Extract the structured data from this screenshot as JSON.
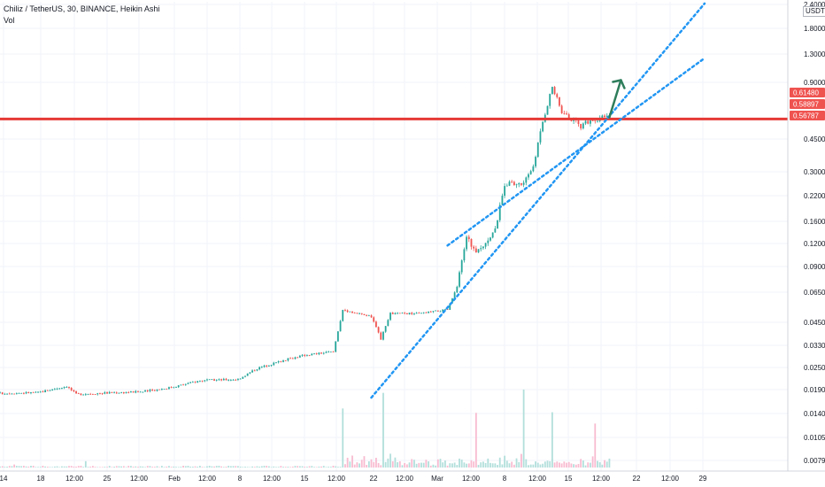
{
  "legend": {
    "symbol": "Chiliz / TetherUS, 30, BINANCE, Heikin Ashi",
    "volume_label": "Vol"
  },
  "price_axis": {
    "currency": "USDT",
    "tick_labels": [
      "2.40000",
      "1.80000",
      "1.30000",
      "0.90000",
      "0.45000",
      "0.30000",
      "0.22000",
      "0.16000",
      "0.12000",
      "0.09000",
      "0.06500",
      "0.04500",
      "0.03300",
      "0.02500",
      "0.01900",
      "0.01400",
      "0.01050",
      "0.00790"
    ],
    "badges": [
      {
        "label": "0.61480",
        "color": "#ef5350"
      },
      {
        "label": "0.58897",
        "color": "#ef5350"
      },
      {
        "label": "0.56787",
        "color": "#ef5350"
      }
    ]
  },
  "time_axis": {
    "tick_labels": [
      "14",
      "18",
      "12:00",
      "25",
      "12:00",
      "Feb",
      "12:00",
      "8",
      "12:00",
      "15",
      "12:00",
      "22",
      "12:00",
      "Mar",
      "12:00",
      "8",
      "12:00",
      "15",
      "12:00",
      "22",
      "12:00",
      "29"
    ]
  },
  "colors": {
    "up": "#26a69a",
    "down": "#ef5350",
    "horizontal_line": "#e53935",
    "trendline": "#2196f3",
    "arrow": "#2e7d5b",
    "volume_up": "#b2dfdb",
    "volume_down": "#f8bbd0"
  },
  "chart_data": {
    "type": "candlestick",
    "title": "Chiliz / TetherUS, 30, BINANCE, Heikin Ashi",
    "y_scale": "log",
    "ylim": [
      0.0075,
      2.4
    ],
    "x_range": [
      "Jan 14",
      "Mar 29"
    ],
    "price_path": [
      {
        "x": "Jan 14",
        "price": 0.0195
      },
      {
        "x": "Jan 18",
        "price": 0.0197
      },
      {
        "x": "Jan 21",
        "price": 0.0213
      },
      {
        "x": "Jan 22",
        "price": 0.0193
      },
      {
        "x": "Jan 25",
        "price": 0.0196
      },
      {
        "x": "Jan 29",
        "price": 0.0199
      },
      {
        "x": "Feb 1",
        "price": 0.021
      },
      {
        "x": "Feb 4",
        "price": 0.0228
      },
      {
        "x": "Feb 8",
        "price": 0.0232
      },
      {
        "x": "Feb 10",
        "price": 0.0265
      },
      {
        "x": "Feb 13",
        "price": 0.0295
      },
      {
        "x": "Feb 15",
        "price": 0.0312
      },
      {
        "x": "Feb 18",
        "price": 0.0325
      },
      {
        "x": "Feb 19",
        "price": 0.0545
      },
      {
        "x": "Feb 22",
        "price": 0.05
      },
      {
        "x": "Feb 23",
        "price": 0.038
      },
      {
        "x": "Feb 24",
        "price": 0.052
      },
      {
        "x": "Feb 27",
        "price": 0.052
      },
      {
        "x": "Mar 2",
        "price": 0.0545
      },
      {
        "x": "Mar 3",
        "price": 0.072
      },
      {
        "x": "Mar 4",
        "price": 0.135
      },
      {
        "x": "Mar 5",
        "price": 0.109
      },
      {
        "x": "Mar 7",
        "price": 0.145
      },
      {
        "x": "Mar 8",
        "price": 0.256
      },
      {
        "x": "Mar 10",
        "price": 0.256
      },
      {
        "x": "Mar 11",
        "price": 0.32
      },
      {
        "x": "Mar 12",
        "price": 0.55
      },
      {
        "x": "Mar 13",
        "price": 0.85
      },
      {
        "x": "Mar 14",
        "price": 0.62
      },
      {
        "x": "Mar 16",
        "price": 0.52
      },
      {
        "x": "Mar 17",
        "price": 0.56
      },
      {
        "x": "Mar 19",
        "price": 0.589
      }
    ],
    "horizontal_lines": [
      0.5679
    ],
    "badges": [
      0.6148,
      0.58897,
      0.56787
    ],
    "trendlines": [
      {
        "style": "dotted",
        "from": {
          "x": "Feb 22",
          "price": 0.0185
        },
        "to": {
          "x": "Mar 29",
          "price": 2.35
        }
      },
      {
        "style": "dotted",
        "from": {
          "x": "Mar 2",
          "price": 0.12
        },
        "to": {
          "x": "Mar 29",
          "price": 1.2
        }
      }
    ],
    "annotations": [
      {
        "type": "arrow",
        "direction": "up",
        "at": {
          "x": "Mar 19",
          "price": 0.58
        }
      }
    ],
    "volume": {
      "label": "Vol",
      "peaks_at": [
        "Feb 19",
        "Mar 5",
        "Mar 10",
        "Mar 13"
      ]
    }
  }
}
